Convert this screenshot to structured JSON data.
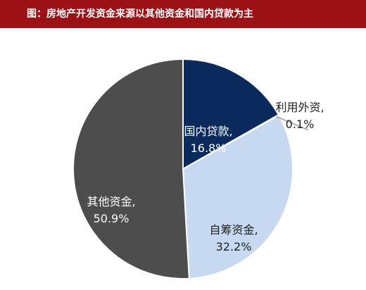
{
  "title": "图：房地产开发资金来源以其他资金和国内贷款为主",
  "colors": {
    "title_bg": "#9b1116",
    "domestic_loans": "#0a2a5e",
    "foreign_capital": "#b9c4d2",
    "self_raised": "#c6d9f1",
    "other": "#4d4d4d"
  },
  "chart_data": {
    "type": "pie",
    "title": "图：房地产开发资金来源以其他资金和国内贷款为主",
    "slices": [
      {
        "label": "国内贷款,",
        "value": 16.8,
        "display": "16.8%",
        "color": "#0a2a5e",
        "text_color": "#ffffff",
        "label_position": "inside"
      },
      {
        "label": "利用外资,",
        "value": 0.1,
        "display": "0.1%",
        "color": "#b9c4d2",
        "text_color": "#222222",
        "label_position": "outside"
      },
      {
        "label": "自筹资金,",
        "value": 32.2,
        "display": "32.2%",
        "color": "#c6d9f1",
        "text_color": "#222222",
        "label_position": "inside"
      },
      {
        "label": "其他资金,",
        "value": 50.9,
        "display": "50.9%",
        "color": "#4d4d4d",
        "text_color": "#ffffff",
        "label_position": "inside"
      }
    ],
    "start_angle": "12 o'clock",
    "direction": "clockwise",
    "legend": "none"
  }
}
